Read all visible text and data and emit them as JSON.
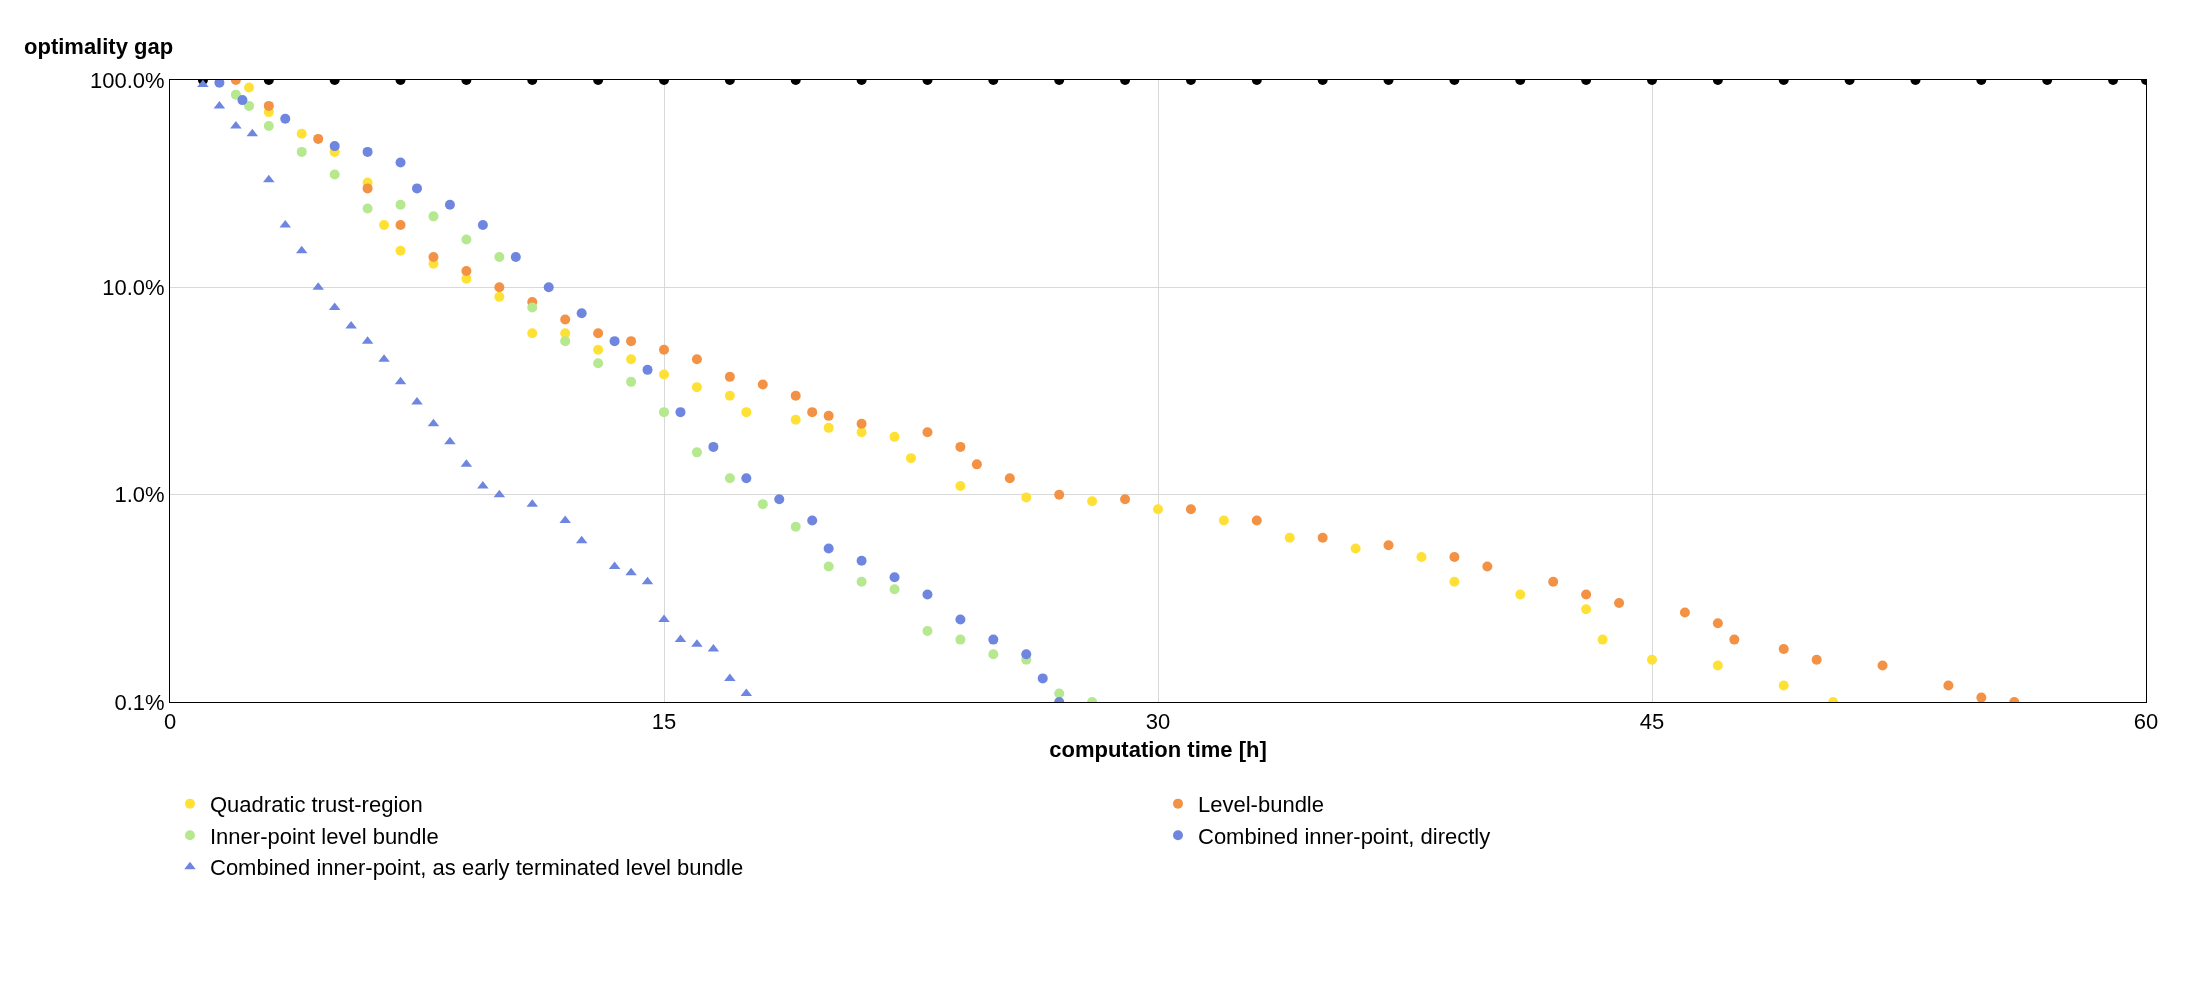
{
  "chart_data": {
    "type": "scatter",
    "xlabel": "computation time [h]",
    "ylabel": "optimality gap",
    "log": "y",
    "grid": true,
    "legend": "bottom",
    "xlim": [
      0,
      60
    ],
    "xticks": [
      0,
      15,
      30,
      45,
      60
    ],
    "ylim": [
      0.1,
      100
    ],
    "yticks": [
      {
        "value": 0.1,
        "label": "0.1%"
      },
      {
        "value": 1,
        "label": "1.0%"
      },
      {
        "value": 10,
        "label": "10.0%"
      },
      {
        "value": 100,
        "label": "100.0%"
      }
    ],
    "series": [
      {
        "name": "Quadratic trust-region",
        "color": "#ffe135",
        "marker": "circle",
        "x": [
          2.4,
          3.0,
          4,
          5,
          6,
          6.5,
          7,
          8,
          9,
          10,
          11,
          12,
          13,
          14,
          15,
          16,
          17,
          17.5,
          19,
          20,
          21,
          22,
          22.5,
          24,
          26,
          28,
          30,
          32,
          34,
          36,
          38,
          39,
          41,
          43,
          43.5,
          45,
          47,
          49,
          50.5
        ],
        "values": [
          92,
          70,
          55,
          45,
          32,
          20,
          15,
          13,
          11,
          9,
          6,
          6,
          5,
          4.5,
          3.8,
          3.3,
          3,
          2.5,
          2.3,
          2.1,
          2,
          1.9,
          1.5,
          1.1,
          0.97,
          0.93,
          0.85,
          0.75,
          0.62,
          0.55,
          0.5,
          0.38,
          0.33,
          0.28,
          0.2,
          0.16,
          0.15,
          0.12,
          0.1
        ]
      },
      {
        "name": "Level-bundle",
        "color": "#f39244",
        "marker": "circle",
        "x": [
          2,
          3,
          4.5,
          6,
          7,
          8,
          9,
          10,
          11,
          12,
          13,
          14,
          15,
          16,
          17,
          18,
          19,
          19.5,
          20,
          21,
          23,
          24,
          24.5,
          25.5,
          27,
          29,
          31,
          33,
          35,
          37,
          39,
          40,
          42,
          43,
          44,
          46,
          47,
          47.5,
          49,
          50,
          52,
          54,
          55,
          56
        ],
        "values": [
          100,
          75,
          52,
          30,
          20,
          14,
          12,
          10,
          8.5,
          7,
          6,
          5.5,
          5,
          4.5,
          3.7,
          3.4,
          3,
          2.5,
          2.4,
          2.2,
          2,
          1.7,
          1.4,
          1.2,
          1,
          0.95,
          0.85,
          0.75,
          0.62,
          0.57,
          0.5,
          0.45,
          0.38,
          0.33,
          0.3,
          0.27,
          0.24,
          0.2,
          0.18,
          0.16,
          0.15,
          0.12,
          0.105,
          0.1
        ]
      },
      {
        "name": "Inner-point level bundle",
        "color": "#b5e88f",
        "marker": "circle",
        "x": [
          2.0,
          2.4,
          3,
          4,
          5,
          6,
          7,
          8,
          9,
          10,
          11,
          12,
          13,
          14,
          15,
          16,
          17,
          18,
          19,
          20,
          21,
          22,
          23,
          24,
          25,
          26,
          27,
          28
        ],
        "values": [
          85,
          75,
          60,
          45,
          35,
          24,
          25,
          22,
          17,
          14,
          8,
          5.5,
          4.3,
          3.5,
          2.5,
          1.6,
          1.2,
          0.9,
          0.7,
          0.45,
          0.38,
          0.35,
          0.22,
          0.2,
          0.17,
          0.16,
          0.11,
          0.1
        ]
      },
      {
        "name": "Combined inner-point, directly",
        "color": "#6f86e0",
        "marker": "circle",
        "x": [
          1.5,
          2.2,
          3.5,
          5,
          6,
          7,
          7.5,
          8.5,
          9.5,
          10.5,
          11.5,
          12.5,
          13.5,
          14.5,
          15.5,
          16.5,
          17.5,
          18.5,
          19.5,
          20,
          21,
          22,
          23,
          24,
          25,
          26,
          26.5,
          27
        ],
        "values": [
          97,
          80,
          65,
          48,
          45,
          40,
          30,
          25,
          20,
          14,
          10,
          7.5,
          5.5,
          4,
          2.5,
          1.7,
          1.2,
          0.95,
          0.75,
          0.55,
          0.48,
          0.4,
          0.33,
          0.25,
          0.2,
          0.17,
          0.13,
          0.1
        ]
      },
      {
        "name": "Combined inner-point, as early terminated level bundle",
        "color": "#6f86e0",
        "marker": "triangle",
        "x": [
          1,
          1.5,
          2,
          2.5,
          3,
          3.5,
          4,
          4.5,
          5,
          5.5,
          6,
          6.5,
          7,
          7.5,
          8,
          8.5,
          9,
          9.5,
          10,
          11,
          12,
          12.5,
          13.5,
          14,
          14.5,
          15,
          15.5,
          16,
          16.5,
          17,
          17.5
        ],
        "values": [
          95,
          75,
          60,
          55,
          33,
          20,
          15,
          10,
          8,
          6.5,
          5.5,
          4.5,
          3.5,
          2.8,
          2.2,
          1.8,
          1.4,
          1.1,
          1,
          0.9,
          0.75,
          0.6,
          0.45,
          0.42,
          0.38,
          0.25,
          0.2,
          0.19,
          0.18,
          0.13,
          0.11
        ]
      },
      {
        "color": "#000000",
        "marker": "circle",
        "x": [
          1,
          3,
          5,
          7,
          9,
          11,
          13,
          15,
          17,
          19,
          21,
          23,
          25,
          27,
          29,
          31,
          33,
          35,
          37,
          39,
          41,
          43,
          45,
          47,
          49,
          51,
          53,
          55,
          57,
          59,
          60
        ],
        "values": [
          100,
          100,
          100,
          100,
          100,
          100,
          100,
          100,
          100,
          100,
          100,
          100,
          100,
          100,
          100,
          100,
          100,
          100,
          100,
          100,
          100,
          100,
          100,
          100,
          100,
          100,
          100,
          100,
          100,
          100,
          100
        ]
      }
    ]
  }
}
